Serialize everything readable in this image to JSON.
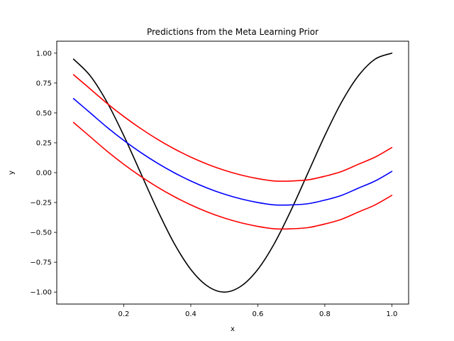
{
  "chart_data": {
    "type": "line",
    "title": "Predictions from the Meta Learning Prior",
    "xlabel": "x",
    "ylabel": "y",
    "xlim": [
      0.0,
      1.05
    ],
    "ylim": [
      -1.1,
      1.1
    ],
    "xticks": [
      0.2,
      0.4,
      0.6,
      0.8,
      1.0
    ],
    "xtick_labels": [
      "0.2",
      "0.4",
      "0.6",
      "0.8",
      "1.0"
    ],
    "yticks": [
      -1.0,
      -0.75,
      -0.5,
      -0.25,
      0.0,
      0.25,
      0.5,
      0.75,
      1.0
    ],
    "ytick_labels": [
      "−1.00",
      "−0.75",
      "−0.50",
      "−0.25",
      "0.00",
      "0.25",
      "0.50",
      "0.75",
      "1.00"
    ],
    "grid": false,
    "series": [
      {
        "color": "#000000",
        "x": [
          0.05,
          0.1,
          0.15,
          0.2,
          0.25,
          0.3,
          0.35,
          0.4,
          0.45,
          0.5,
          0.55,
          0.6,
          0.65,
          0.7,
          0.75,
          0.8,
          0.85,
          0.9,
          0.95,
          1.0
        ],
        "y": [
          0.95,
          0.81,
          0.59,
          0.31,
          0.0,
          -0.31,
          -0.59,
          -0.81,
          -0.95,
          -1.0,
          -0.95,
          -0.81,
          -0.59,
          -0.31,
          0.0,
          0.31,
          0.59,
          0.81,
          0.95,
          1.0
        ]
      },
      {
        "color": "#0000ff",
        "x": [
          0.05,
          0.1,
          0.15,
          0.2,
          0.25,
          0.3,
          0.35,
          0.4,
          0.45,
          0.5,
          0.55,
          0.6,
          0.65,
          0.7,
          0.75,
          0.8,
          0.85,
          0.9,
          0.95,
          1.0
        ],
        "y": [
          0.62,
          0.5,
          0.38,
          0.27,
          0.17,
          0.08,
          0.0,
          -0.07,
          -0.13,
          -0.18,
          -0.22,
          -0.25,
          -0.27,
          -0.27,
          -0.26,
          -0.23,
          -0.19,
          -0.13,
          -0.07,
          0.01
        ]
      },
      {
        "color": "#ff0000",
        "x": [
          0.05,
          0.1,
          0.15,
          0.2,
          0.25,
          0.3,
          0.35,
          0.4,
          0.45,
          0.5,
          0.55,
          0.6,
          0.65,
          0.7,
          0.75,
          0.8,
          0.85,
          0.9,
          0.95,
          1.0
        ],
        "y": [
          0.82,
          0.7,
          0.58,
          0.47,
          0.37,
          0.28,
          0.2,
          0.13,
          0.07,
          0.02,
          -0.02,
          -0.05,
          -0.07,
          -0.07,
          -0.06,
          -0.03,
          0.01,
          0.07,
          0.13,
          0.21
        ]
      },
      {
        "color": "#ff0000",
        "x": [
          0.05,
          0.1,
          0.15,
          0.2,
          0.25,
          0.3,
          0.35,
          0.4,
          0.45,
          0.5,
          0.55,
          0.6,
          0.65,
          0.7,
          0.75,
          0.8,
          0.85,
          0.9,
          0.95,
          1.0
        ],
        "y": [
          0.42,
          0.3,
          0.18,
          0.07,
          -0.03,
          -0.12,
          -0.2,
          -0.27,
          -0.33,
          -0.38,
          -0.42,
          -0.45,
          -0.47,
          -0.47,
          -0.46,
          -0.43,
          -0.39,
          -0.33,
          -0.27,
          -0.19
        ]
      }
    ]
  }
}
